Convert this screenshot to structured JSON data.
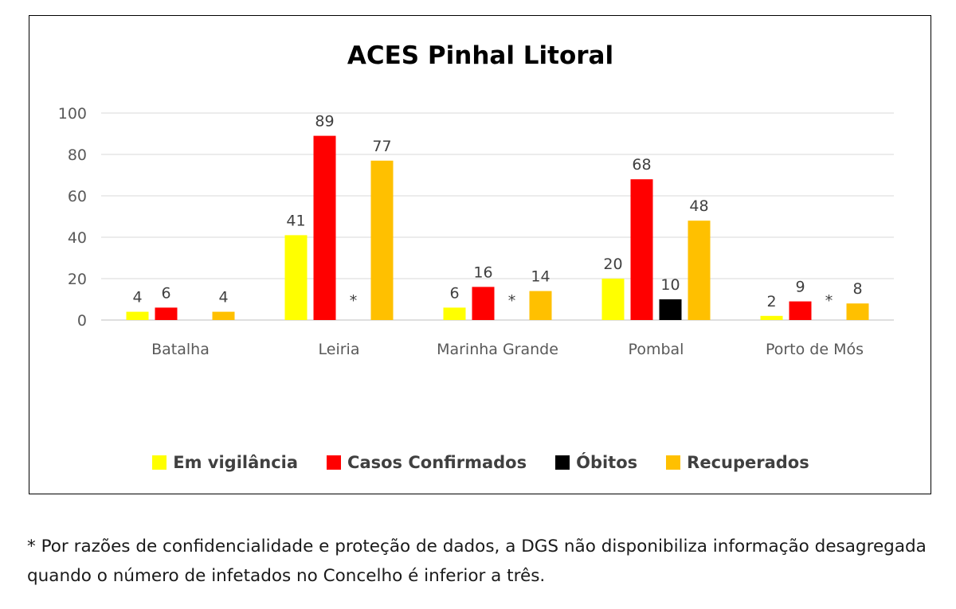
{
  "chart_data": {
    "type": "bar",
    "title": "ACES Pinhal Litoral",
    "categories": [
      "Batalha",
      "Leiria",
      "Marinha Grande",
      "Pombal",
      "Porto de Mós"
    ],
    "ylim": [
      0,
      100
    ],
    "yticks": [
      0,
      20,
      40,
      60,
      80,
      100
    ],
    "grid": true,
    "legend_position": "bottom",
    "series": [
      {
        "name": "Em vigilância",
        "color": "#FFFF00",
        "values": [
          4,
          41,
          6,
          20,
          2
        ]
      },
      {
        "name": "Casos Confirmados",
        "color": "#FF0000",
        "values": [
          6,
          89,
          16,
          68,
          9
        ]
      },
      {
        "name": "Óbitos",
        "color": "#000000",
        "values": [
          null,
          null,
          null,
          10,
          null
        ],
        "labels": [
          "",
          "*",
          "*",
          "10",
          "*"
        ]
      },
      {
        "name": "Recuperados",
        "color": "#FFC000",
        "values": [
          4,
          77,
          14,
          48,
          8
        ]
      }
    ]
  },
  "footnote": "* Por razões de confidencialidade e proteção de dados, a DGS não disponibiliza informação desagregada quando o número de infetados no Concelho é inferior a três."
}
